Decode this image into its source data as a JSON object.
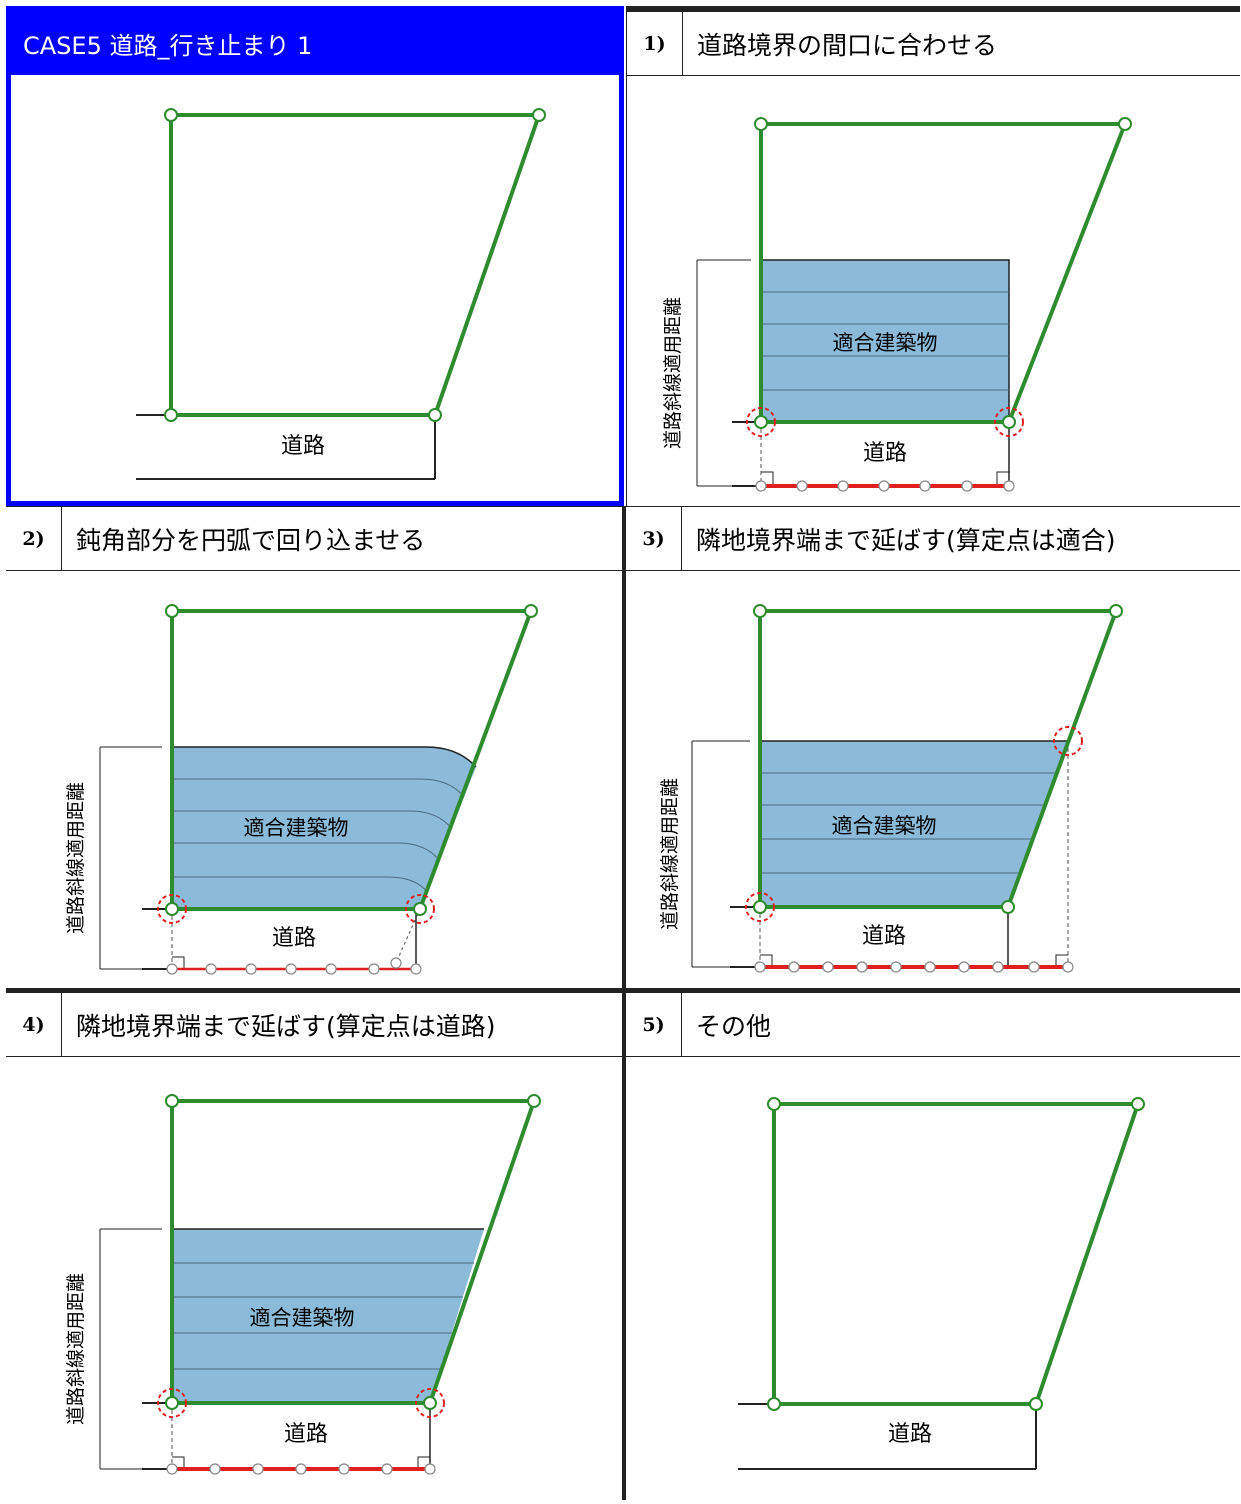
{
  "case_title": "CASE5  道路_行き止まり 1",
  "common": {
    "road_label": "道路",
    "building_label": "適合建築物",
    "distance_label": "道路斜線適用距離"
  },
  "panels": [
    {
      "number": "1)",
      "title": "道路境界の間口に合わせる"
    },
    {
      "number": "2)",
      "title": "鈍角部分を円弧で回り込ませる"
    },
    {
      "number": "3)",
      "title": "隣地境界端まで延ばす(算定点は適合)"
    },
    {
      "number": "4)",
      "title": "隣地境界端まで延ばす(算定点は道路)"
    },
    {
      "number": "5)",
      "title": "その他"
    }
  ],
  "colors": {
    "header_blue": "#0000ff",
    "site_line": "#2e8b2e",
    "building_fill": "#8bbbd9",
    "highlight_red": "#e02020"
  }
}
